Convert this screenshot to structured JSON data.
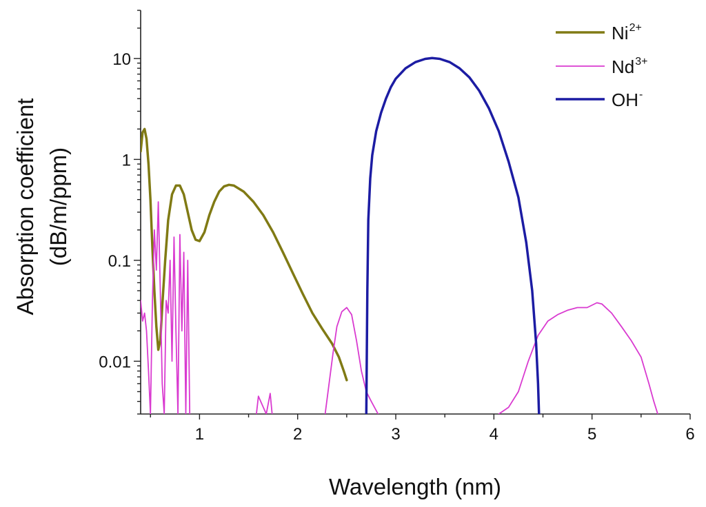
{
  "chart_data": {
    "type": "line",
    "title": "",
    "xlabel": "Wavelength (nm)",
    "ylabel_line1": "Absorption coefficient",
    "ylabel_line2": "(dB/m/ppm)",
    "xlim": [
      0.4,
      6
    ],
    "ylim": [
      0.003,
      30
    ],
    "yscale": "log",
    "grid": false,
    "legend_position": "top-right",
    "x_ticks": [
      1,
      2,
      3,
      4,
      5,
      6
    ],
    "x_tick_labels": [
      "1",
      "2",
      "3",
      "4",
      "5",
      "6"
    ],
    "y_ticks": [
      0.01,
      0.1,
      1,
      10
    ],
    "y_tick_labels": [
      "0.01",
      "0.1",
      "1",
      "10"
    ],
    "series": [
      {
        "name": "Ni",
        "superscript": "2+",
        "color": "#807a14",
        "line_width": 3.5,
        "points": [
          [
            0.4,
            1.2
          ],
          [
            0.42,
            1.85
          ],
          [
            0.44,
            2.0
          ],
          [
            0.46,
            1.6
          ],
          [
            0.48,
            0.9
          ],
          [
            0.5,
            0.4
          ],
          [
            0.52,
            0.13
          ],
          [
            0.54,
            0.05
          ],
          [
            0.56,
            0.022
          ],
          [
            0.58,
            0.013
          ],
          [
            0.6,
            0.016
          ],
          [
            0.62,
            0.035
          ],
          [
            0.65,
            0.1
          ],
          [
            0.68,
            0.25
          ],
          [
            0.72,
            0.45
          ],
          [
            0.76,
            0.55
          ],
          [
            0.8,
            0.55
          ],
          [
            0.84,
            0.45
          ],
          [
            0.88,
            0.3
          ],
          [
            0.92,
            0.2
          ],
          [
            0.96,
            0.16
          ],
          [
            1.0,
            0.155
          ],
          [
            1.05,
            0.19
          ],
          [
            1.1,
            0.28
          ],
          [
            1.15,
            0.38
          ],
          [
            1.2,
            0.48
          ],
          [
            1.25,
            0.54
          ],
          [
            1.3,
            0.56
          ],
          [
            1.35,
            0.55
          ],
          [
            1.45,
            0.48
          ],
          [
            1.55,
            0.38
          ],
          [
            1.65,
            0.28
          ],
          [
            1.75,
            0.19
          ],
          [
            1.85,
            0.12
          ],
          [
            1.95,
            0.075
          ],
          [
            2.05,
            0.047
          ],
          [
            2.15,
            0.03
          ],
          [
            2.25,
            0.021
          ],
          [
            2.35,
            0.015
          ],
          [
            2.42,
            0.011
          ],
          [
            2.47,
            0.008
          ],
          [
            2.5,
            0.0065
          ]
        ]
      },
      {
        "name": "Nd",
        "superscript": "3+",
        "color": "#d93ad0",
        "line_width": 1.8,
        "segments": [
          [
            [
              0.4,
              0.04
            ],
            [
              0.42,
              0.025
            ],
            [
              0.44,
              0.03
            ],
            [
              0.46,
              0.02
            ],
            [
              0.48,
              0.008
            ],
            [
              0.5,
              0.003
            ],
            [
              0.52,
              0.04
            ],
            [
              0.54,
              0.2
            ],
            [
              0.56,
              0.08
            ],
            [
              0.58,
              0.38
            ],
            [
              0.6,
              0.05
            ],
            [
              0.62,
              0.006
            ],
            [
              0.64,
              0.003
            ],
            [
              0.66,
              0.04
            ],
            [
              0.68,
              0.03
            ],
            [
              0.7,
              0.1
            ],
            [
              0.72,
              0.01
            ],
            [
              0.74,
              0.17
            ],
            [
              0.76,
              0.02
            ],
            [
              0.78,
              0.003
            ],
            [
              0.8,
              0.18
            ],
            [
              0.82,
              0.02
            ],
            [
              0.84,
              0.12
            ],
            [
              0.86,
              0.003
            ],
            [
              0.88,
              0.1
            ],
            [
              0.9,
              0.003
            ]
          ],
          [
            [
              1.58,
              0.003
            ],
            [
              1.6,
              0.0045
            ],
            [
              1.65,
              0.0035
            ],
            [
              1.68,
              0.003
            ],
            [
              1.72,
              0.0048
            ],
            [
              1.74,
              0.003
            ]
          ],
          [
            [
              2.28,
              0.003
            ],
            [
              2.32,
              0.006
            ],
            [
              2.36,
              0.012
            ],
            [
              2.4,
              0.022
            ],
            [
              2.45,
              0.031
            ],
            [
              2.5,
              0.034
            ],
            [
              2.55,
              0.029
            ],
            [
              2.6,
              0.016
            ],
            [
              2.65,
              0.008
            ],
            [
              2.7,
              0.005
            ],
            [
              2.75,
              0.004
            ],
            [
              2.82,
              0.003
            ]
          ],
          [
            [
              4.05,
              0.003
            ],
            [
              4.15,
              0.0035
            ],
            [
              4.25,
              0.005
            ],
            [
              4.35,
              0.01
            ],
            [
              4.45,
              0.018
            ],
            [
              4.55,
              0.025
            ],
            [
              4.65,
              0.029
            ],
            [
              4.75,
              0.032
            ],
            [
              4.85,
              0.034
            ],
            [
              4.95,
              0.034
            ],
            [
              5.05,
              0.038
            ],
            [
              5.1,
              0.037
            ],
            [
              5.2,
              0.03
            ],
            [
              5.3,
              0.022
            ],
            [
              5.4,
              0.016
            ],
            [
              5.5,
              0.011
            ],
            [
              5.58,
              0.006
            ],
            [
              5.63,
              0.004
            ],
            [
              5.67,
              0.003
            ]
          ]
        ]
      },
      {
        "name": "OH",
        "superscript": "-",
        "color": "#1c1ca3",
        "line_width": 3.5,
        "points": [
          [
            2.7,
            0.003
          ],
          [
            2.71,
            0.05
          ],
          [
            2.72,
            0.25
          ],
          [
            2.74,
            0.65
          ],
          [
            2.76,
            1.1
          ],
          [
            2.8,
            1.9
          ],
          [
            2.85,
            2.9
          ],
          [
            2.9,
            4.0
          ],
          [
            2.95,
            5.2
          ],
          [
            3.0,
            6.3
          ],
          [
            3.1,
            8.0
          ],
          [
            3.2,
            9.2
          ],
          [
            3.3,
            9.9
          ],
          [
            3.37,
            10.1
          ],
          [
            3.45,
            9.9
          ],
          [
            3.55,
            9.2
          ],
          [
            3.65,
            8.0
          ],
          [
            3.75,
            6.5
          ],
          [
            3.85,
            4.8
          ],
          [
            3.95,
            3.2
          ],
          [
            4.05,
            1.9
          ],
          [
            4.15,
            0.95
          ],
          [
            4.25,
            0.42
          ],
          [
            4.33,
            0.15
          ],
          [
            4.39,
            0.05
          ],
          [
            4.43,
            0.015
          ],
          [
            4.45,
            0.006
          ],
          [
            4.46,
            0.003
          ]
        ]
      }
    ]
  }
}
